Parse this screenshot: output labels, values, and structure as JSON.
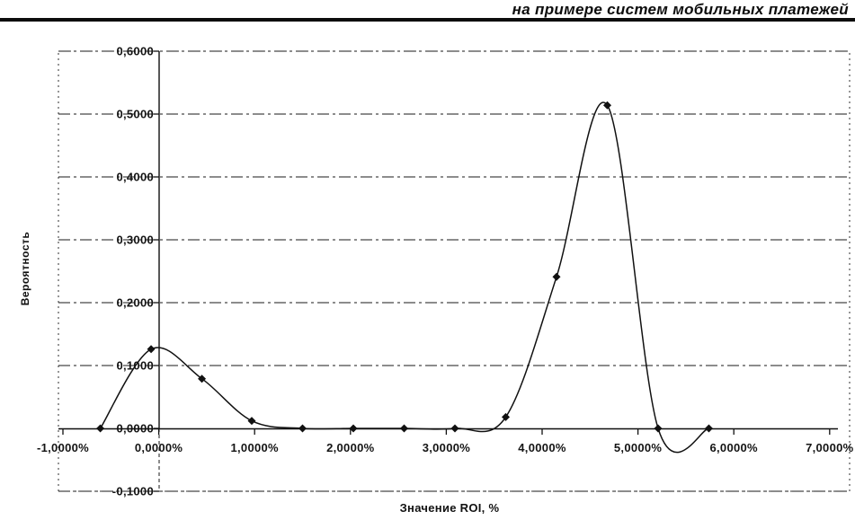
{
  "header": {
    "title": "на примере систем мобильных платежей"
  },
  "chart_data": {
    "type": "line",
    "title": "",
    "xlabel": "Значение ROI, %",
    "ylabel": "Вероятность",
    "xlim": [
      -1,
      7
    ],
    "ylim": [
      -0.1,
      0.6
    ],
    "grid": true,
    "legend": false,
    "marker": "diamond",
    "line_color": "#111111",
    "x_ticks": [
      -1,
      0,
      1,
      2,
      3,
      4,
      5,
      6,
      7
    ],
    "x_tick_labels": [
      "-1,0000%",
      "0,0000%",
      "1,0000%",
      "2,0000%",
      "3,0000%",
      "4,0000%",
      "5,0000%",
      "6,0000%",
      "7,0000%"
    ],
    "y_ticks": [
      0.6,
      0.5,
      0.4,
      0.3,
      0.2,
      0.1,
      0.0,
      -0.1
    ],
    "y_tick_labels": [
      "0,6000",
      "0,5000",
      "0,4000",
      "0,3000",
      "0,2000",
      "0,1000",
      "0,0000",
      "-0,1000"
    ],
    "series": [
      {
        "x": [
          -0.61,
          -0.08,
          0.45,
          0.97,
          1.5,
          2.03,
          2.56,
          3.09,
          3.62,
          4.15,
          4.68,
          5.21,
          5.74
        ],
        "y": [
          0.0,
          0.126,
          0.079,
          0.012,
          0.0,
          0.0,
          0.0,
          0.0,
          0.018,
          0.241,
          0.514,
          0.0,
          0.0
        ]
      }
    ]
  }
}
